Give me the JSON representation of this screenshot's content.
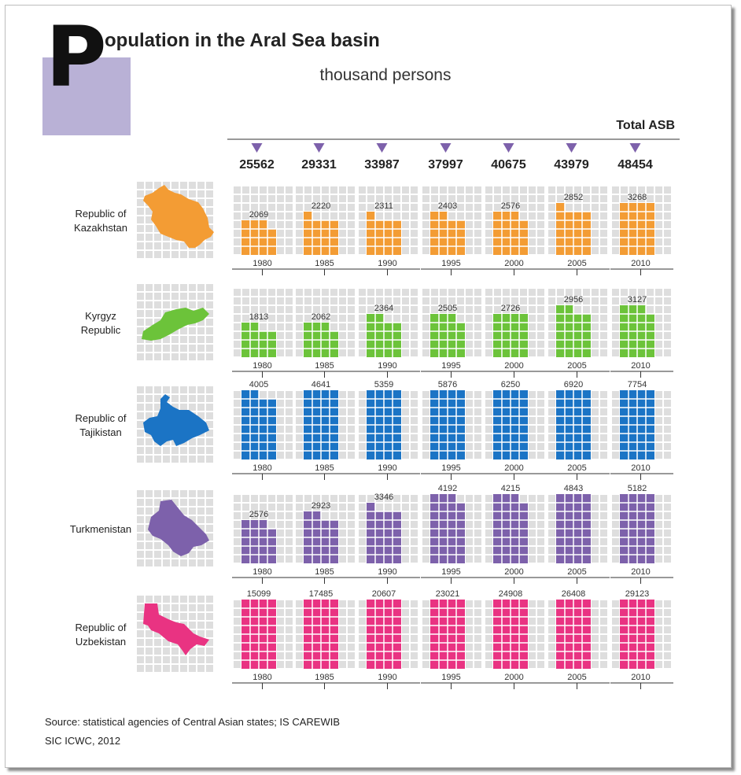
{
  "title": {
    "big_letter": "P",
    "rest": "opulation in the Aral Sea basin",
    "subtitle": "thousand persons"
  },
  "total_label": "Total ASB",
  "source": {
    "line1": "Source: statistical agencies of Central Asian states; IS CAREWIB",
    "line2": "SIC ICWC, 2012"
  },
  "chart_data": {
    "type": "bar",
    "title": "Population in the Aral Sea basin",
    "unit": "thousand persons",
    "categories": [
      "1980",
      "1985",
      "1990",
      "1995",
      "2000",
      "2005",
      "2010"
    ],
    "totals": {
      "name": "Total ASB",
      "values": [
        25562,
        29331,
        33987,
        37997,
        40675,
        43979,
        48454
      ]
    },
    "series": [
      {
        "name": "Republic of Kazakhstan",
        "label_lines": [
          "Republic of",
          "Kazakhstan"
        ],
        "color": "#f39c34",
        "values": [
          2069,
          2220,
          2311,
          2403,
          2576,
          2852,
          3268
        ]
      },
      {
        "name": "Kyrgyz Republic",
        "label_lines": [
          "Kyrgyz",
          "Republic"
        ],
        "color": "#6cc33a",
        "values": [
          1813,
          2062,
          2364,
          2505,
          2726,
          2956,
          3127
        ]
      },
      {
        "name": "Republic of Tajikistan",
        "label_lines": [
          "Republic of",
          "Tajikistan"
        ],
        "color": "#1b74c5",
        "values": [
          4005,
          4641,
          5359,
          5876,
          6250,
          6920,
          7754
        ]
      },
      {
        "name": "Turkmenistan",
        "label_lines": [
          "Turkmenistan"
        ],
        "color": "#7d61ab",
        "values": [
          2576,
          2923,
          3346,
          4192,
          4215,
          4843,
          5182
        ]
      },
      {
        "name": "Republic of Uzbekistan",
        "label_lines": [
          "Republic of",
          "Uzbekistan"
        ],
        "color": "#e93382",
        "values": [
          15099,
          17485,
          20607,
          23021,
          24908,
          26408,
          29123
        ]
      }
    ],
    "marker_color": "#7d61ab",
    "grid_color": "#dedede"
  }
}
